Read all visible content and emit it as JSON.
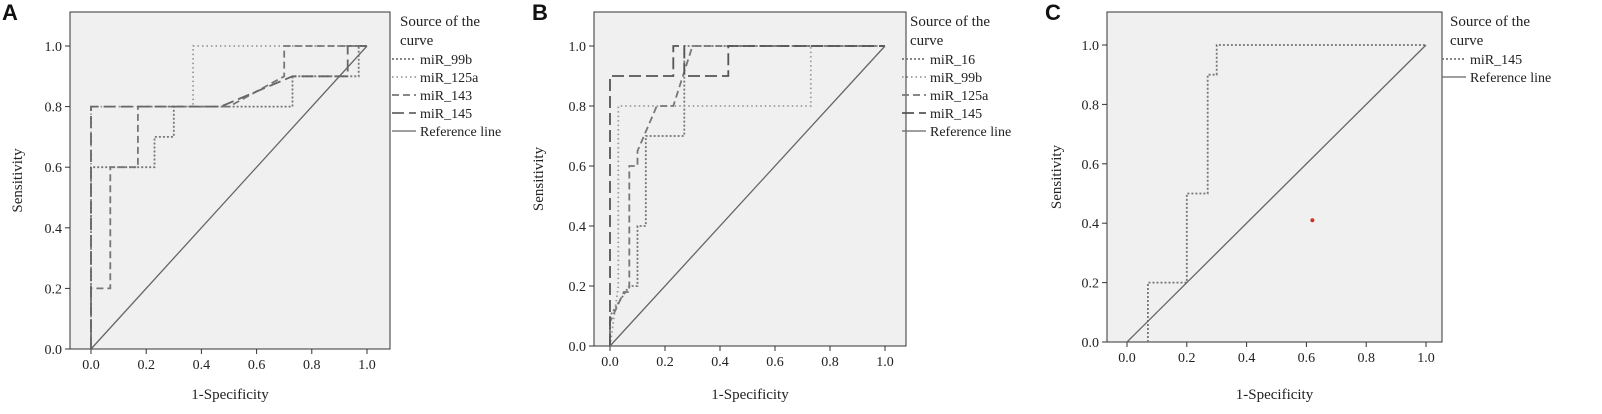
{
  "chart_data": [
    {
      "panel_label": "A",
      "type": "line",
      "xlabel": "1-Specificity",
      "ylabel": "Sensitivity",
      "xlim": [
        0,
        1
      ],
      "ylim": [
        0,
        1
      ],
      "ticks": [
        "0.0",
        "0.2",
        "0.4",
        "0.6",
        "0.8",
        "1.0"
      ],
      "legend_title": [
        "Source of the",
        "curve"
      ],
      "legend_position": "right",
      "series": [
        {
          "name": "miR_99b",
          "dash": "dot",
          "color": "#777777",
          "points": [
            [
              0,
              0
            ],
            [
              0,
              0.6
            ],
            [
              0.23,
              0.6
            ],
            [
              0.23,
              0.7
            ],
            [
              0.3,
              0.7
            ],
            [
              0.3,
              0.8
            ],
            [
              0.73,
              0.8
            ],
            [
              0.73,
              0.9
            ],
            [
              0.97,
              0.9
            ],
            [
              0.97,
              1
            ],
            [
              1,
              1
            ]
          ]
        },
        {
          "name": "miR_125a",
          "dash": "dot-fine",
          "color": "#999999",
          "points": [
            [
              0,
              0
            ],
            [
              0,
              0.8
            ],
            [
              0.37,
              0.8
            ],
            [
              0.37,
              1
            ],
            [
              1,
              1
            ]
          ]
        },
        {
          "name": "miR_143",
          "dash": "dash-short",
          "color": "#777777",
          "points": [
            [
              0,
              0
            ],
            [
              0,
              0.2
            ],
            [
              0.07,
              0.2
            ],
            [
              0.07,
              0.6
            ],
            [
              0.17,
              0.6
            ],
            [
              0.17,
              0.8
            ],
            [
              0.5,
              0.8
            ],
            [
              0.7,
              0.9
            ],
            [
              0.7,
              1
            ],
            [
              1,
              1
            ]
          ]
        },
        {
          "name": "miR_145",
          "dash": "dash-long",
          "color": "#666666",
          "points": [
            [
              0,
              0
            ],
            [
              0,
              0.8
            ],
            [
              0.47,
              0.8
            ],
            [
              0.73,
              0.9
            ],
            [
              0.93,
              0.9
            ],
            [
              0.93,
              1
            ],
            [
              1,
              1
            ]
          ]
        },
        {
          "name": "Reference line",
          "dash": "solid",
          "color": "#666666",
          "points": [
            [
              0,
              0
            ],
            [
              1,
              1
            ]
          ]
        }
      ]
    },
    {
      "panel_label": "B",
      "type": "line",
      "xlabel": "1-Specificity",
      "ylabel": "Sensitivity",
      "xlim": [
        0,
        1
      ],
      "ylim": [
        0,
        1
      ],
      "ticks": [
        "0.0",
        "0.2",
        "0.4",
        "0.6",
        "0.8",
        "1.0"
      ],
      "legend_title": [
        "Source of the",
        "curve"
      ],
      "legend_position": "right",
      "series": [
        {
          "name": "miR_16",
          "dash": "dot",
          "color": "#777777",
          "points": [
            [
              0,
              0
            ],
            [
              0,
              0.1
            ],
            [
              0.07,
              0.2
            ],
            [
              0.1,
              0.2
            ],
            [
              0.1,
              0.4
            ],
            [
              0.13,
              0.4
            ],
            [
              0.13,
              0.7
            ],
            [
              0.27,
              0.7
            ],
            [
              0.27,
              1
            ],
            [
              1,
              1
            ]
          ]
        },
        {
          "name": "miR_99b",
          "dash": "dot-fine",
          "color": "#999999",
          "points": [
            [
              0,
              0
            ],
            [
              0.03,
              0.2
            ],
            [
              0.03,
              0.8
            ],
            [
              0.73,
              0.8
            ],
            [
              0.73,
              1
            ],
            [
              1,
              1
            ]
          ]
        },
        {
          "name": "miR_125a",
          "dash": "dash-short",
          "color": "#777777",
          "points": [
            [
              0,
              0
            ],
            [
              0,
              0.08
            ],
            [
              0.05,
              0.18
            ],
            [
              0.07,
              0.18
            ],
            [
              0.07,
              0.6
            ],
            [
              0.1,
              0.6
            ],
            [
              0.1,
              0.65
            ],
            [
              0.17,
              0.8
            ],
            [
              0.23,
              0.8
            ],
            [
              0.3,
              1
            ],
            [
              1,
              1
            ]
          ]
        },
        {
          "name": "miR_145",
          "dash": "dash-long",
          "color": "#555555",
          "points": [
            [
              0,
              0
            ],
            [
              0,
              0.9
            ],
            [
              0.23,
              0.9
            ],
            [
              0.23,
              1
            ],
            [
              0.27,
              1
            ],
            [
              0.27,
              0.9
            ],
            [
              0.43,
              0.9
            ],
            [
              0.43,
              1
            ],
            [
              1,
              1
            ]
          ]
        },
        {
          "name": "Reference line",
          "dash": "solid",
          "color": "#666666",
          "points": [
            [
              0,
              0
            ],
            [
              1,
              1
            ]
          ]
        }
      ]
    },
    {
      "panel_label": "C",
      "type": "line",
      "xlabel": "1-Specificity",
      "ylabel": "Sensitivity",
      "xlim": [
        0,
        1
      ],
      "ylim": [
        0,
        1
      ],
      "ticks": [
        "0.0",
        "0.2",
        "0.4",
        "0.6",
        "0.8",
        "1.0"
      ],
      "legend_title": [
        "Source of the",
        "curve"
      ],
      "legend_position": "right",
      "series": [
        {
          "name": "miR_145",
          "dash": "dot",
          "color": "#777777",
          "points": [
            [
              0.07,
              0
            ],
            [
              0.07,
              0.2
            ],
            [
              0.2,
              0.2
            ],
            [
              0.2,
              0.5
            ],
            [
              0.27,
              0.5
            ],
            [
              0.27,
              0.9
            ],
            [
              0.3,
              0.9
            ],
            [
              0.3,
              1
            ],
            [
              1,
              1
            ]
          ]
        },
        {
          "name": "Reference line",
          "dash": "solid",
          "color": "#666666",
          "points": [
            [
              0,
              0
            ],
            [
              1,
              1
            ]
          ]
        }
      ],
      "marker": {
        "x": 0.62,
        "y": 0.41,
        "color": "#cc3322"
      }
    }
  ],
  "colors": {
    "plot_background": "#f0f0f0",
    "frame": "#333333",
    "tick_text": "#222222"
  }
}
